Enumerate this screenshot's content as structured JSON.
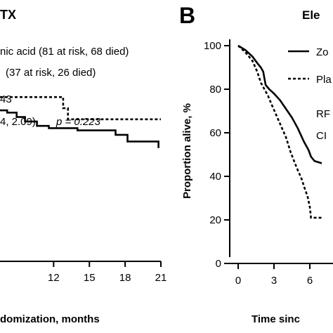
{
  "chart_data": [
    {
      "type": "line",
      "panel": "A",
      "title": "TX",
      "legend": [
        "nic acid (81 at risk, 68 died)",
        "(37 at risk, 26 died)"
      ],
      "stats": {
        "line1": "43",
        "line2": "4, 2.09)",
        "p_label": "p = 0.223"
      },
      "xlabel": "domization, months",
      "x_ticks": [
        12,
        15,
        18,
        21
      ],
      "xlim": [
        7.5,
        21
      ],
      "ylim": [
        0,
        100
      ],
      "series": [
        {
          "style": "solid",
          "points": [
            [
              7.5,
              68
            ],
            [
              8.1,
              68
            ],
            [
              8.1,
              67
            ],
            [
              8.9,
              67
            ],
            [
              8.9,
              65
            ],
            [
              9.6,
              65
            ],
            [
              9.6,
              63
            ],
            [
              10.6,
              63
            ],
            [
              10.6,
              61
            ],
            [
              11.6,
              61
            ],
            [
              11.6,
              60
            ],
            [
              14.0,
              60
            ],
            [
              14.0,
              59
            ],
            [
              17.2,
              59
            ],
            [
              17.2,
              57
            ],
            [
              18.2,
              57
            ],
            [
              18.2,
              54
            ],
            [
              20.8,
              54
            ],
            [
              20.8,
              51
            ]
          ]
        },
        {
          "style": "dashed",
          "points": [
            [
              7.5,
              74
            ],
            [
              12.8,
              74
            ],
            [
              12.8,
              69
            ],
            [
              13.2,
              69
            ],
            [
              13.2,
              64
            ],
            [
              21.0,
              64
            ]
          ]
        }
      ]
    },
    {
      "type": "line",
      "panel": "B",
      "title": "Ele",
      "legend": [
        "Zo",
        "Pla"
      ],
      "stats": {
        "line1": "RF",
        "line2": "CI"
      },
      "xlabel": "Time sinc",
      "ylabel": "Proportion alive, %",
      "x_ticks": [
        0,
        3,
        6
      ],
      "y_ticks": [
        0,
        20,
        40,
        60,
        80,
        100
      ],
      "xlim": [
        -1,
        7
      ],
      "ylim": [
        0,
        100
      ],
      "series": [
        {
          "style": "solid",
          "points": [
            [
              0,
              100
            ],
            [
              0.6,
              98
            ],
            [
              1.2,
              95
            ],
            [
              1.6,
              92
            ],
            [
              1.9,
              90
            ],
            [
              2.1,
              88
            ],
            [
              2.3,
              82
            ],
            [
              2.6,
              80
            ],
            [
              3.0,
              78
            ],
            [
              3.5,
              75
            ],
            [
              4.0,
              71
            ],
            [
              4.5,
              67
            ],
            [
              5.0,
              62
            ],
            [
              5.5,
              56
            ],
            [
              5.9,
              52
            ],
            [
              6.1,
              49
            ],
            [
              6.4,
              47
            ],
            [
              7.0,
              46
            ]
          ]
        },
        {
          "style": "dashed",
          "points": [
            [
              0,
              100
            ],
            [
              0.6,
              97
            ],
            [
              1.2,
              93
            ],
            [
              1.6,
              88
            ],
            [
              1.9,
              83
            ],
            [
              2.2,
              80
            ],
            [
              2.5,
              77
            ],
            [
              2.8,
              73
            ],
            [
              3.2,
              68
            ],
            [
              3.6,
              63
            ],
            [
              4.0,
              58
            ],
            [
              4.4,
              51
            ],
            [
              4.9,
              44
            ],
            [
              5.3,
              39
            ],
            [
              5.6,
              34
            ],
            [
              5.8,
              31
            ],
            [
              6.0,
              26
            ],
            [
              6.1,
              21
            ],
            [
              7.0,
              21
            ]
          ]
        }
      ]
    }
  ]
}
